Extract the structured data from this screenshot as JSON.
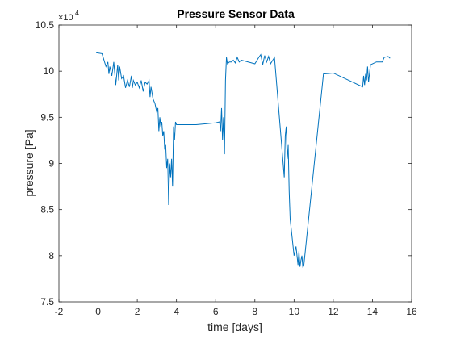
{
  "chart_data": {
    "type": "line",
    "title": "Pressure Sensor Data",
    "xlabel": "time [days]",
    "ylabel": "pressure [Pa]",
    "xlim": [
      -2,
      16
    ],
    "ylim": [
      7.5,
      10.5
    ],
    "y_exponent": "×10",
    "y_exponent_power": "4",
    "xticks": [
      "-2",
      "0",
      "2",
      "4",
      "6",
      "8",
      "10",
      "12",
      "14",
      "16"
    ],
    "yticks": [
      "7.5",
      "8",
      "8.5",
      "9",
      "9.5",
      "10",
      "10.5"
    ],
    "grid": false,
    "line_color": "#0072BD",
    "series": [
      {
        "x": [
          -0.1,
          0.2,
          0.4,
          0.5,
          0.55,
          0.6,
          0.7,
          0.8,
          0.9,
          1.0,
          1.05,
          1.1,
          1.2,
          1.3,
          1.4,
          1.5,
          1.6,
          1.7,
          1.75,
          1.8,
          1.9,
          2.0,
          2.1,
          2.2,
          2.3,
          2.4,
          2.5,
          2.6,
          2.65,
          2.7,
          2.8,
          2.9,
          3.0,
          3.05,
          3.1,
          3.15,
          3.2,
          3.25,
          3.3,
          3.35,
          3.4,
          3.45,
          3.5,
          3.55,
          3.6,
          3.65,
          3.7,
          3.75,
          3.8,
          3.85,
          3.9,
          3.95,
          4.0,
          4.1,
          5.0,
          6.0,
          6.2,
          6.25,
          6.3,
          6.35,
          6.4,
          6.45,
          6.5,
          6.55,
          6.6,
          6.7,
          6.8,
          6.9,
          7.0,
          7.1,
          7.2,
          7.3,
          8.0,
          8.2,
          8.3,
          8.4,
          8.5,
          8.6,
          8.7,
          8.8,
          9.0,
          9.5,
          9.55,
          9.6,
          9.65,
          9.7,
          9.75,
          9.8,
          9.85,
          9.9,
          10.0,
          10.1,
          10.2,
          10.25,
          10.3,
          10.35,
          10.4,
          10.45,
          10.5,
          11.5,
          12.0,
          13.5,
          13.55,
          13.6,
          13.65,
          13.7,
          13.75,
          13.8,
          13.9,
          14.0,
          14.2,
          14.5,
          14.6,
          14.8,
          14.9
        ],
        "values": [
          10.2,
          10.19,
          10.05,
          10.1,
          9.97,
          10.05,
          9.95,
          10.1,
          9.85,
          10.07,
          9.9,
          10.05,
          9.92,
          9.95,
          9.82,
          9.9,
          9.83,
          9.95,
          9.82,
          9.9,
          9.85,
          9.88,
          9.82,
          9.9,
          9.78,
          9.88,
          9.86,
          9.9,
          9.72,
          9.83,
          9.7,
          9.65,
          9.55,
          9.6,
          9.35,
          9.5,
          9.4,
          9.45,
          9.3,
          9.35,
          9.15,
          9.2,
          8.95,
          9.05,
          8.55,
          9.0,
          8.85,
          9.05,
          8.75,
          9.4,
          9.25,
          9.45,
          9.42,
          9.42,
          9.42,
          9.44,
          9.45,
          9.35,
          9.6,
          9.25,
          9.5,
          9.1,
          9.9,
          10.15,
          10.08,
          10.1,
          10.1,
          10.12,
          10.09,
          10.15,
          10.1,
          10.12,
          10.08,
          10.15,
          10.18,
          10.07,
          10.17,
          10.1,
          10.16,
          10.08,
          10.15,
          8.85,
          9.3,
          9.4,
          9.05,
          9.2,
          8.7,
          8.4,
          8.3,
          8.2,
          8.0,
          8.1,
          7.9,
          8.05,
          7.88,
          7.95,
          8.0,
          7.87,
          7.9,
          9.97,
          9.98,
          9.83,
          9.95,
          9.85,
          9.97,
          9.9,
          10.05,
          9.88,
          10.07,
          10.08,
          10.1,
          10.1,
          10.15,
          10.16,
          10.14
        ]
      }
    ]
  }
}
